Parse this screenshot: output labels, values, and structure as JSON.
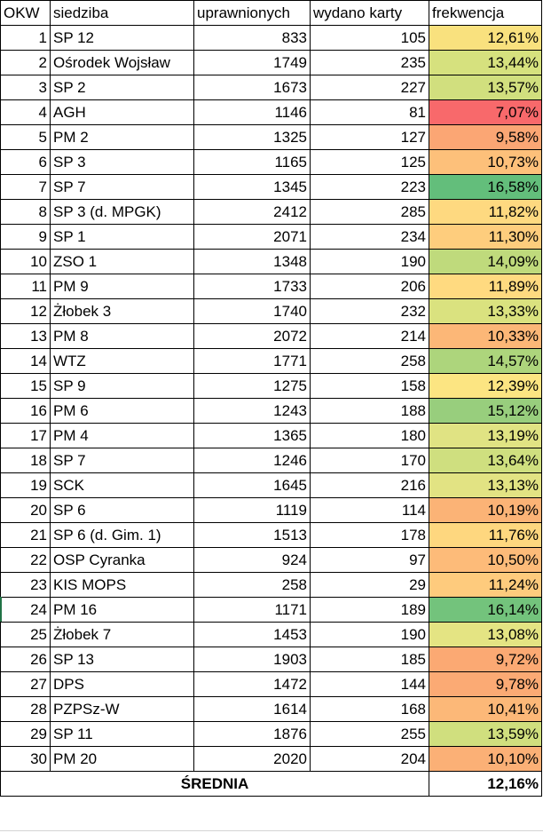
{
  "headers": [
    "OKW",
    "siedziba",
    "uprawnionych",
    "wydano karty",
    "frekwencja"
  ],
  "rows": [
    {
      "okw": "1",
      "siedziba": "SP 12",
      "uprawnionych": "833",
      "wydano": "105",
      "frekwencja": "12,61%",
      "color": "#F9E17E"
    },
    {
      "okw": "2",
      "siedziba": "Ośrodek Wojsław",
      "uprawnionych": "1749",
      "wydano": "235",
      "frekwencja": "13,44%",
      "color": "#D6E17E"
    },
    {
      "okw": "3",
      "siedziba": "SP 2",
      "uprawnionych": "1673",
      "wydano": "227",
      "frekwencja": "13,57%",
      "color": "#D1DF7E"
    },
    {
      "okw": "4",
      "siedziba": "AGH",
      "uprawnionych": "1146",
      "wydano": "81",
      "frekwencja": "7,07%",
      "color": "#F8696B"
    },
    {
      "okw": "5",
      "siedziba": "PM 2",
      "uprawnionych": "1325",
      "wydano": "127",
      "frekwencja": "9,58%",
      "color": "#FBA674"
    },
    {
      "okw": "6",
      "siedziba": "SP 3",
      "uprawnionych": "1165",
      "wydano": "125",
      "frekwencja": "10,73%",
      "color": "#FDC07A"
    },
    {
      "okw": "7",
      "siedziba": "SP 7",
      "uprawnionych": "1345",
      "wydano": "223",
      "frekwencja": "16,58%",
      "color": "#63BE7B"
    },
    {
      "okw": "8",
      "siedziba": "SP 3 (d. MPGK)",
      "uprawnionych": "2412",
      "wydano": "285",
      "frekwencja": "11,82%",
      "color": "#FED980"
    },
    {
      "okw": "9",
      "siedziba": "SP 1",
      "uprawnionych": "2071",
      "wydano": "234",
      "frekwencja": "11,30%",
      "color": "#FECD7D"
    },
    {
      "okw": "10",
      "siedziba": "ZSO 1",
      "uprawnionych": "1348",
      "wydano": "190",
      "frekwencja": "14,09%",
      "color": "#BFDA7C"
    },
    {
      "okw": "11",
      "siedziba": "PM 9",
      "uprawnionych": "1733",
      "wydano": "206",
      "frekwencja": "11,89%",
      "color": "#FFDA80"
    },
    {
      "okw": "12",
      "siedziba": "Żłobek 3",
      "uprawnionych": "1740",
      "wydano": "232",
      "frekwencja": "13,33%",
      "color": "#DAE27F"
    },
    {
      "okw": "13",
      "siedziba": "PM 8",
      "uprawnionych": "2072",
      "wydano": "214",
      "frekwencja": "10,33%",
      "color": "#FCB777"
    },
    {
      "okw": "14",
      "siedziba": "WTZ",
      "uprawnionych": "1771",
      "wydano": "258",
      "frekwencja": "14,57%",
      "color": "#ADD57C"
    },
    {
      "okw": "15",
      "siedziba": "SP 9",
      "uprawnionych": "1275",
      "wydano": "158",
      "frekwencja": "12,39%",
      "color": "#FCE582"
    },
    {
      "okw": "16",
      "siedziba": "PM 6",
      "uprawnionych": "1243",
      "wydano": "188",
      "frekwencja": "15,12%",
      "color": "#98CE7D"
    },
    {
      "okw": "17",
      "siedziba": "PM 4",
      "uprawnionych": "1365",
      "wydano": "180",
      "frekwencja": "13,19%",
      "color": "#E0E383"
    },
    {
      "okw": "18",
      "siedziba": "SP 7",
      "uprawnionych": "1246",
      "wydano": "170",
      "frekwencja": "13,64%",
      "color": "#CFDF7F"
    },
    {
      "okw": "19",
      "siedziba": "SCK",
      "uprawnionych": "1645",
      "wydano": "216",
      "frekwencja": "13,13%",
      "color": "#E2E383"
    },
    {
      "okw": "20",
      "siedziba": "SP 6",
      "uprawnionych": "1119",
      "wydano": "114",
      "frekwencja": "10,19%",
      "color": "#FBB376"
    },
    {
      "okw": "21",
      "siedziba": "SP 6 (d. Gim. 1)",
      "uprawnionych": "1513",
      "wydano": "178",
      "frekwencja": "11,76%",
      "color": "#FED77F"
    },
    {
      "okw": "22",
      "siedziba": "OSP Cyranka",
      "uprawnionych": "924",
      "wydano": "97",
      "frekwencja": "10,50%",
      "color": "#FDBB79"
    },
    {
      "okw": "23",
      "siedziba": "KIS MOPS",
      "uprawnionych": "258",
      "wydano": "29",
      "frekwencja": "11,24%",
      "color": "#FECB7D"
    },
    {
      "okw": "24",
      "siedziba": "PM 16",
      "uprawnionych": "1171",
      "wydano": "189",
      "frekwencja": "16,14%",
      "color": "#73C37C"
    },
    {
      "okw": "25",
      "siedziba": "Żłobek 7",
      "uprawnionych": "1453",
      "wydano": "190",
      "frekwencja": "13,08%",
      "color": "#E4E483"
    },
    {
      "okw": "26",
      "siedziba": "SP 13",
      "uprawnionych": "1903",
      "wydano": "185",
      "frekwencja": "9,72%",
      "color": "#FBA973"
    },
    {
      "okw": "27",
      "siedziba": "DPS",
      "uprawnionych": "1472",
      "wydano": "144",
      "frekwencja": "9,78%",
      "color": "#FBAA74"
    },
    {
      "okw": "28",
      "siedziba": "PZPSz-W",
      "uprawnionych": "1614",
      "wydano": "168",
      "frekwencja": "10,41%",
      "color": "#FCB878"
    },
    {
      "okw": "29",
      "siedziba": "SP 11",
      "uprawnionych": "1876",
      "wydano": "255",
      "frekwencja": "13,59%",
      "color": "#D0DF7E"
    },
    {
      "okw": "30",
      "siedziba": "PM 20",
      "uprawnionych": "2020",
      "wydano": "204",
      "frekwencja": "10,10%",
      "color": "#FBB076"
    }
  ],
  "footer": {
    "label": "ŚREDNIA",
    "value": "12,16%"
  }
}
